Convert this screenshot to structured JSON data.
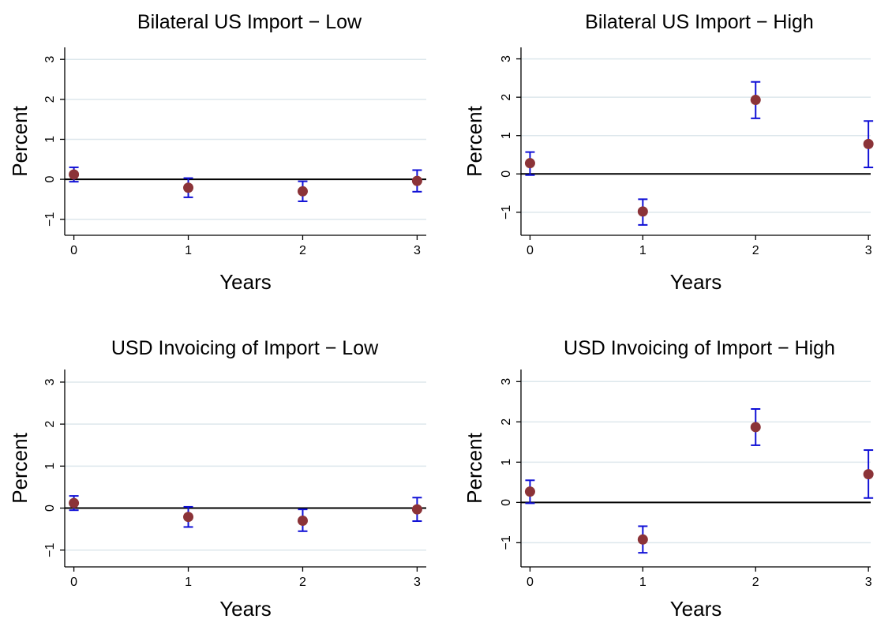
{
  "chart_data": [
    {
      "type": "scatter",
      "title": "Bilateral US Import − Low",
      "xlabel": "Years",
      "ylabel": "Percent",
      "x": [
        0,
        1,
        2,
        3
      ],
      "y": [
        0.12,
        -0.21,
        -0.3,
        -0.04
      ],
      "ci_low": [
        -0.06,
        -0.45,
        -0.55,
        -0.31
      ],
      "ci_high": [
        0.3,
        0.03,
        -0.05,
        0.23
      ],
      "xlim": [
        -0.08,
        3.08
      ],
      "ylim": [
        -1.4,
        3.3
      ],
      "xticks": [
        "0",
        "1",
        "2",
        "3"
      ],
      "yticks": [
        "−1",
        "0",
        "1",
        "2",
        "3"
      ],
      "grid": true,
      "zero_line": true,
      "colors": {
        "marker": "#8b3338",
        "error_bar": "#1010d6",
        "zero_line": "#000000",
        "grid": "#dde7ec"
      }
    },
    {
      "type": "scatter",
      "title": "Bilateral US Import − High",
      "xlabel": "Years",
      "ylabel": "Percent",
      "x": [
        0,
        1,
        2,
        3
      ],
      "y": [
        0.28,
        -0.98,
        1.93,
        0.78
      ],
      "ci_low": [
        -0.03,
        -1.33,
        1.45,
        0.17
      ],
      "ci_high": [
        0.57,
        -0.66,
        2.4,
        1.38
      ],
      "xlim": [
        -0.08,
        3.02
      ],
      "ylim": [
        -1.6,
        3.3
      ],
      "xticks": [
        "0",
        "1",
        "2",
        "3"
      ],
      "yticks": [
        "−1",
        "0",
        "1",
        "2",
        "3"
      ],
      "grid": true,
      "zero_line": true,
      "colors": {
        "marker": "#8b3338",
        "error_bar": "#1010d6",
        "zero_line": "#000000",
        "grid": "#dde7ec"
      }
    },
    {
      "type": "scatter",
      "title": "USD Invoicing of Import − Low",
      "xlabel": "Years",
      "ylabel": "Percent",
      "x": [
        0,
        1,
        2,
        3
      ],
      "y": [
        0.12,
        -0.21,
        -0.3,
        -0.03
      ],
      "ci_low": [
        -0.05,
        -0.45,
        -0.55,
        -0.31
      ],
      "ci_high": [
        0.29,
        0.03,
        -0.03,
        0.25
      ],
      "xlim": [
        -0.08,
        3.08
      ],
      "ylim": [
        -1.4,
        3.3
      ],
      "xticks": [
        "0",
        "1",
        "2",
        "3"
      ],
      "yticks": [
        "−1",
        "0",
        "1",
        "2",
        "3"
      ],
      "grid": true,
      "zero_line": true,
      "colors": {
        "marker": "#8b3338",
        "error_bar": "#1010d6",
        "zero_line": "#000000",
        "grid": "#dde7ec"
      }
    },
    {
      "type": "scatter",
      "title": "USD Invoicing of Import − High",
      "xlabel": "Years",
      "ylabel": "Percent",
      "x": [
        0,
        1,
        2,
        3
      ],
      "y": [
        0.27,
        -0.92,
        1.87,
        0.7
      ],
      "ci_low": [
        -0.02,
        -1.25,
        1.42,
        0.11
      ],
      "ci_high": [
        0.55,
        -0.59,
        2.32,
        1.3
      ],
      "xlim": [
        -0.08,
        3.02
      ],
      "ylim": [
        -1.6,
        3.3
      ],
      "xticks": [
        "0",
        "1",
        "2",
        "3"
      ],
      "yticks": [
        "−1",
        "0",
        "1",
        "2",
        "3"
      ],
      "grid": true,
      "zero_line": true,
      "colors": {
        "marker": "#8b3338",
        "error_bar": "#1010d6",
        "zero_line": "#000000",
        "grid": "#dde7ec"
      }
    }
  ]
}
